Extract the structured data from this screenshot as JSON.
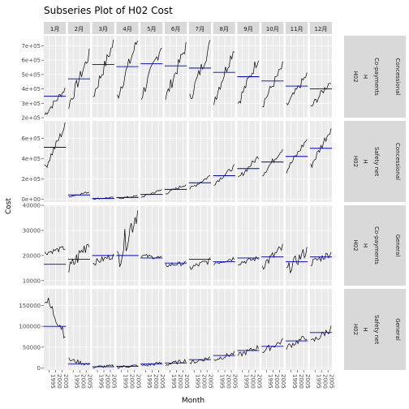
{
  "chart_data": {
    "type": "line",
    "title": "Subseries Plot of H02 Cost",
    "xlabel": "Month",
    "ylabel": "Cost",
    "grid": true,
    "months": [
      "1月",
      "2月",
      "3月",
      "4月",
      "5月",
      "6月",
      "7月",
      "8月",
      "9月",
      "10月",
      "11月",
      "12月"
    ],
    "x_ticks": [
      "1995",
      "2000",
      "2005"
    ],
    "x_range": [
      1991,
      2008
    ],
    "series_line_color": "#000000",
    "mean_line_color": "#0000cc",
    "panel_bg": "#ebebeb",
    "strip_bg": "#d9d9d9",
    "rows": [
      {
        "strip_right": [
          "Concessional",
          "Co-payments",
          "H",
          "H02"
        ],
        "y_range": [
          200000,
          770000
        ],
        "y_ticks": [
          {
            "value": 200000,
            "label": "2e+05"
          },
          {
            "value": 300000,
            "label": "3e+05"
          },
          {
            "value": 400000,
            "label": "4e+05"
          },
          {
            "value": 500000,
            "label": "5e+05"
          },
          {
            "value": 600000,
            "label": "6e+05"
          },
          {
            "value": 700000,
            "label": "7e+05"
          }
        ],
        "means": [
          350000,
          470000,
          570000,
          555000,
          575000,
          560000,
          545000,
          515000,
          485000,
          455000,
          420000,
          400000
        ],
        "start": [
          220000,
          290000,
          350000,
          345000,
          345000,
          335000,
          330000,
          320000,
          300000,
          290000,
          280000,
          270000
        ],
        "end": [
          400000,
          640000,
          720000,
          740000,
          710000,
          700000,
          710000,
          690000,
          620000,
          560000,
          500000,
          460000
        ],
        "noise": 0.07
      },
      {
        "strip_right": [
          "Concessional",
          "Safety net",
          "H",
          "H02"
        ],
        "y_range": [
          -30000,
          770000
        ],
        "y_ticks": [
          {
            "value": 0,
            "label": "0e+00"
          },
          {
            "value": 200000,
            "label": "2e+05"
          },
          {
            "value": 400000,
            "label": "4e+05"
          },
          {
            "value": 600000,
            "label": "6e+05"
          }
        ],
        "means": [
          510000,
          40000,
          5000,
          15000,
          45000,
          95000,
          160000,
          230000,
          300000,
          365000,
          420000,
          500000
        ],
        "start": [
          300000,
          25000,
          2000,
          5000,
          20000,
          55000,
          100000,
          150000,
          200000,
          240000,
          280000,
          320000
        ],
        "end": [
          720000,
          70000,
          15000,
          30000,
          90000,
          145000,
          230000,
          320000,
          420000,
          500000,
          590000,
          700000
        ],
        "noise": 0.06
      },
      {
        "strip_right": [
          "General",
          "Co-payments",
          "H",
          "H02"
        ],
        "y_range": [
          8000,
          40000
        ],
        "y_ticks": [
          {
            "value": 10000,
            "label": "10000"
          },
          {
            "value": 20000,
            "label": "20000"
          },
          {
            "value": 30000,
            "label": "30000"
          },
          {
            "value": 40000,
            "label": "40000"
          }
        ],
        "means": [
          16500,
          18500,
          20000,
          20000,
          19000,
          17000,
          18500,
          17500,
          19000,
          19500,
          17500,
          19500
        ],
        "start": [
          21000,
          14000,
          17000,
          18000,
          20000,
          16000,
          15000,
          17000,
          17000,
          16000,
          14000,
          17000
        ],
        "end": [
          23000,
          26000,
          20000,
          38000,
          19000,
          17000,
          18000,
          19000,
          19000,
          23000,
          22000,
          21000
        ],
        "noise": 0.15
      },
      {
        "strip_right": [
          "General",
          "Safety net",
          "H",
          "H02"
        ],
        "y_range": [
          -5000,
          190000
        ],
        "y_ticks": [
          {
            "value": 0,
            "label": "0"
          },
          {
            "value": 50000,
            "label": "50000"
          },
          {
            "value": 100000,
            "label": "100000"
          },
          {
            "value": 150000,
            "label": "150000"
          }
        ],
        "means": [
          100000,
          10000,
          3000,
          4000,
          10000,
          12000,
          20000,
          30000,
          42000,
          52000,
          65000,
          85000
        ],
        "start": [
          170000,
          20000,
          2000,
          2000,
          5000,
          8000,
          12000,
          20000,
          30000,
          40000,
          50000,
          60000
        ],
        "end": [
          85000,
          8000,
          5000,
          6000,
          12000,
          18000,
          25000,
          35000,
          50000,
          65000,
          75000,
          95000
        ],
        "noise": 0.12
      }
    ]
  }
}
